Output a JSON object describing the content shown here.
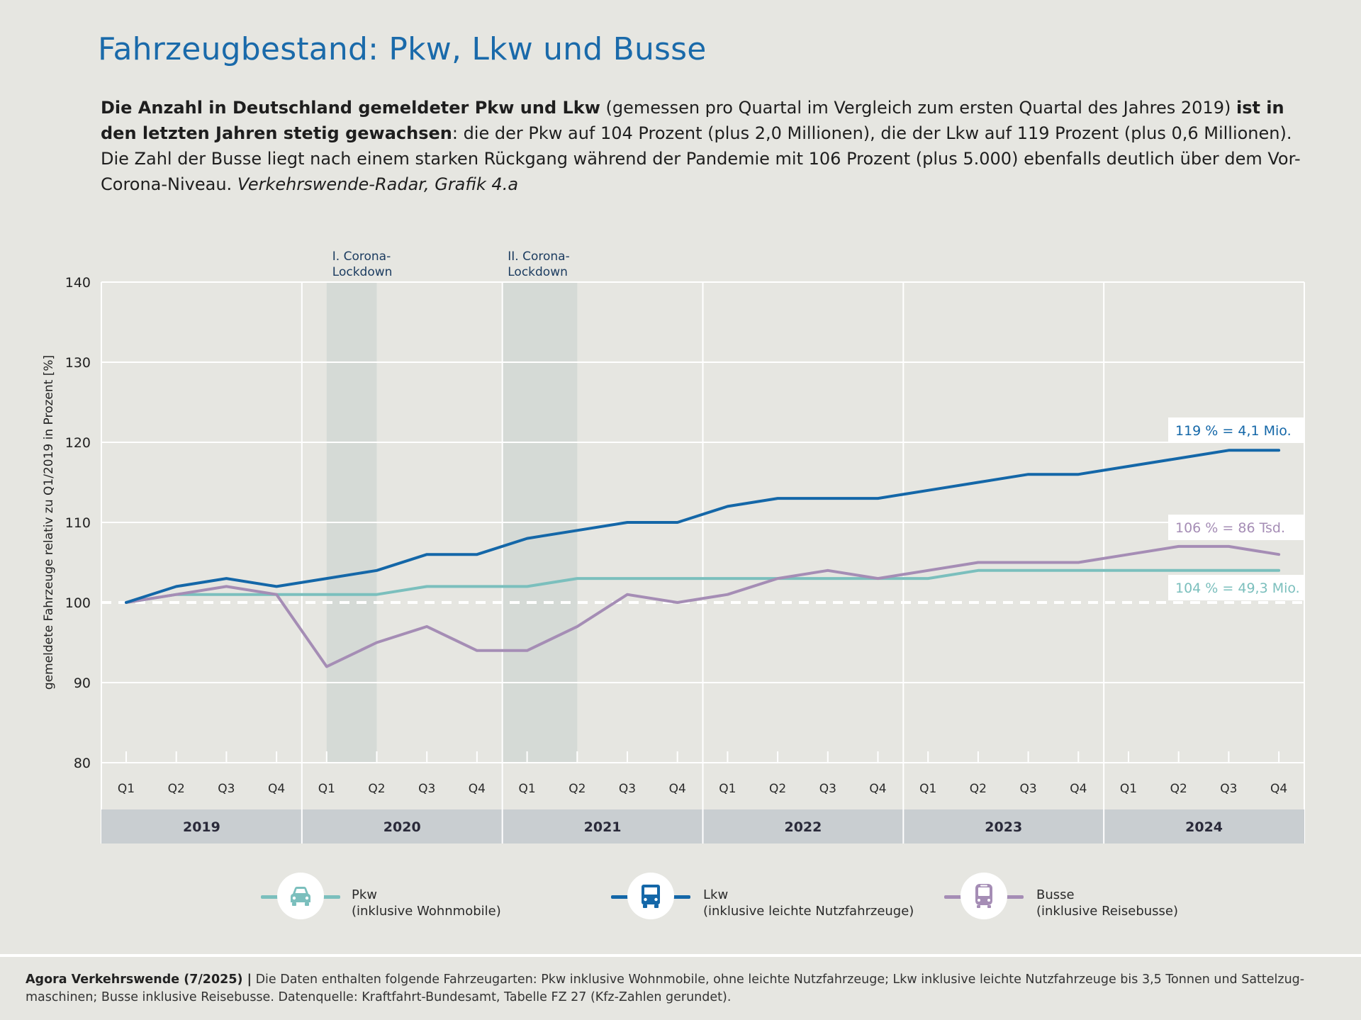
{
  "header": {
    "title": "Fahrzeugbestand: Pkw, Lkw und Busse"
  },
  "intro": {
    "bold1": "Die Anzahl in Deutschland gemeldeter Pkw und Lkw",
    "text1": " (gemessen pro Quartal im Vergleich zum ersten Quartal des Jahres 2019) ",
    "bold2": "ist in den letzten Jahren stetig gewachsen",
    "text2": ": die der Pkw auf 104 Prozent (plus 2,0 Millionen), die der Lkw auf 119 Prozent (plus 0,6 Millionen). Die Zahl der Busse liegt nach einem starken Rückgang während der Pandemie mit 106 Prozent (plus 5.000) ebenfalls deutlich über dem Vor-Corona-Niveau. ",
    "italic": "Verkehrswende-Radar, Grafik 4.a"
  },
  "colors": {
    "pkw": "#7bbfbd",
    "lkw": "#1467a8",
    "busse": "#a58db5",
    "lockdown_band": "#d5dad6",
    "year_band": "#c9ced1",
    "title": "#1a6aaa"
  },
  "chart_data": {
    "type": "line",
    "ylabel": "gemeldete Fahrzeuge relativ zu Q1/2019 in Prozent [%]",
    "ylim": [
      80,
      140
    ],
    "yticks": [
      "80",
      "90",
      "100",
      "110",
      "120",
      "130",
      "140"
    ],
    "reference_line": 100,
    "grid": true,
    "quarters": [
      "Q1",
      "Q2",
      "Q3",
      "Q4",
      "Q1",
      "Q2",
      "Q3",
      "Q4",
      "Q1",
      "Q2",
      "Q3",
      "Q4",
      "Q1",
      "Q2",
      "Q3",
      "Q4",
      "Q1",
      "Q2",
      "Q3",
      "Q4",
      "Q1",
      "Q2",
      "Q3",
      "Q4"
    ],
    "years": [
      "2019",
      "2020",
      "2021",
      "2022",
      "2023",
      "2024"
    ],
    "series": [
      {
        "name": "Lkw",
        "key": "lkw",
        "values": [
          100,
          102,
          103,
          102,
          103,
          104,
          106,
          106,
          108,
          109,
          110,
          110,
          112,
          113,
          113,
          113,
          114,
          115,
          116,
          116,
          117,
          118,
          119,
          119
        ],
        "end_label": "119 % = 4,1 Mio."
      },
      {
        "name": "Busse",
        "key": "busse",
        "values": [
          100,
          101,
          102,
          101,
          92,
          95,
          97,
          94,
          94,
          97,
          101,
          100,
          101,
          103,
          104,
          103,
          104,
          105,
          105,
          105,
          106,
          107,
          107,
          106
        ],
        "end_label": "106 % = 86 Tsd."
      },
      {
        "name": "Pkw",
        "key": "pkw",
        "values": [
          100,
          101,
          101,
          101,
          101,
          101,
          102,
          102,
          102,
          103,
          103,
          103,
          103,
          103,
          103,
          103,
          103,
          104,
          104,
          104,
          104,
          104,
          104,
          104
        ],
        "end_label": "104 % = 49,3 Mio."
      }
    ],
    "annotations": [
      {
        "label_line1": "I. Corona-",
        "label_line2": "Lockdown",
        "from_index": 4,
        "to_index": 5
      },
      {
        "label_line1": "II. Corona-",
        "label_line2": "Lockdown",
        "from_index": 7.5,
        "to_index": 9
      }
    ]
  },
  "legend": [
    {
      "key": "pkw",
      "icon": "car-icon",
      "line1": "Pkw",
      "line2": "(inklusive Wohnmobile)"
    },
    {
      "key": "lkw",
      "icon": "truck-icon",
      "line1": "Lkw",
      "line2": "(inklusive leichte Nutzfahrzeuge)"
    },
    {
      "key": "busse",
      "icon": "bus-icon",
      "line1": "Busse",
      "line2": "(inklusive Reisebusse)"
    }
  ],
  "footer": {
    "source_bold": "Agora Verkehrswende (7/2025) |",
    "text": " Die Daten enthalten folgende Fahrzeugarten: Pkw inklusive Wohnmobile, ohne leichte Nutzfahrzeuge; Lkw inklusive leichte Nutzfahrzeuge bis 3,5 Tonnen und Sattelzug­maschinen; Busse inklusive Reisebusse. Datenquelle: Kraftfahrt-Bundesamt, Tabelle FZ 27 (Kfz-Zahlen gerundet)."
  }
}
